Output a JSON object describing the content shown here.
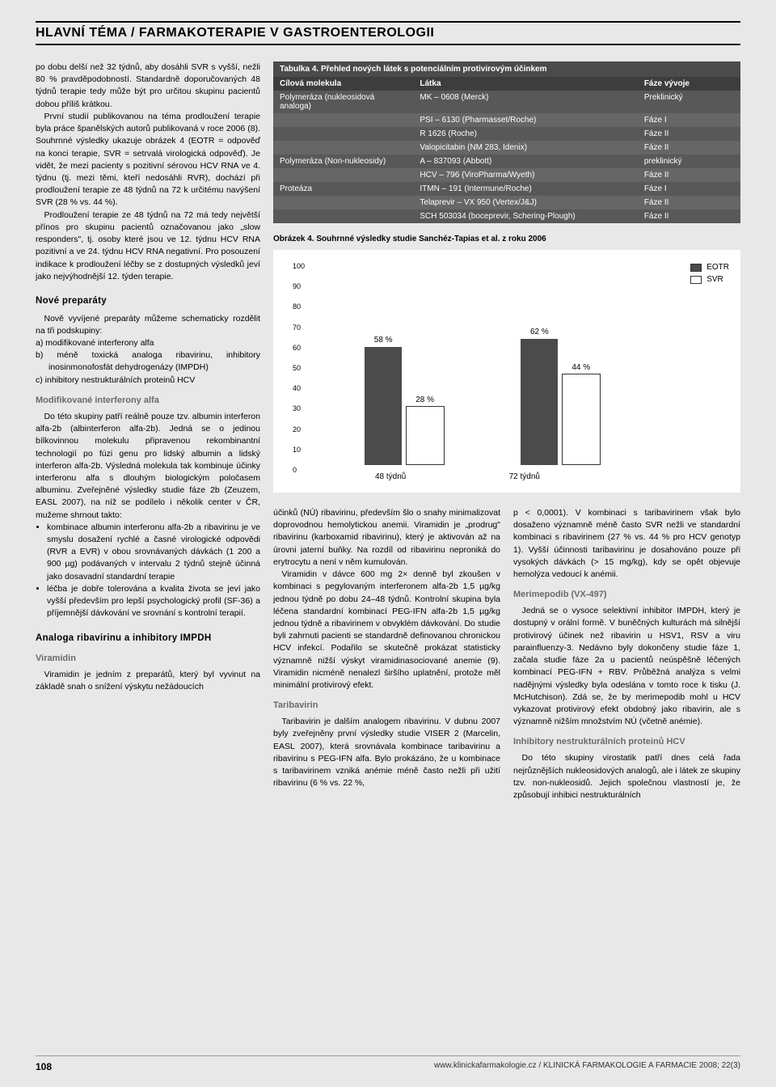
{
  "headline": "HLAVNÍ TÉMA / FARMAKOTERAPIE V GASTROENTEROLOGII",
  "left": {
    "p1": "po dobu delší než 32 týdnů, aby dosáhli SVR s vyšší, nežli 80 % pravděpodobností. Standardně doporučovaných 48 týdnů terapie tedy může být pro určitou skupinu pacientů dobou příliš krátkou.",
    "p2": "První studií publikovanou na téma prodloužení terapie byla práce španělských autorů publikovaná v roce 2006 (8). Souhrnné výsledky ukazuje obrázek 4 (EOTR = odpověď na konci terapie, SVR = setrvalá virologická odpověď). Je vidět, že mezi pacienty s pozitivní sérovou HCV RNA ve 4. týdnu (tj. mezi těmi, kteří nedosáhli RVR), dochází při prodloužení terapie ze 48 týdnů na 72 k určitému navýšení SVR (28 % vs. 44 %).",
    "p3": "Prodloužení terapie ze 48 týdnů na 72 má tedy největší přínos pro skupinu pacientů označovanou jako „slow responders\", tj. osoby které jsou ve 12. týdnu HCV RNA pozitivní a ve 24. týdnu HCV RNA negativní. Pro posouzení indikace k prodloužení léčby se z dostupných výsledků jeví jako nejvýhodnější 12. týden terapie.",
    "sub1": "Nové preparáty",
    "p4": "Nově vyvíjené preparáty můžeme schematicky rozdělit na tři podskupiny:",
    "li_a": "a)  modifikované interferony alfa",
    "li_b": "b)  méně toxická analoga ribavirinu, inhibitory inosinmonofosfát dehydrogenázy (IMPDH)",
    "li_c": "c)  inhibitory nestrukturálních proteinů HCV",
    "sub2": "Modifikované interferony alfa",
    "p5": "Do této skupiny patří reálně pouze tzv. albumin interferon alfa-2b (albinterferon alfa-2b). Jedná se o jedinou bílkovinnou molekulu připravenou rekombinantní technologií po fúzi genu pro lidský albumin a lidský interferon alfa-2b. Výsledná molekula tak kombinuje účinky interferonu alfa s dlouhým biologickým poločasem albuminu. Zveřejněné výsledky studie fáze 2b (Zeuzem, EASL 2007), na níž se podílelo i několik center v ČR, mužeme shrnout takto:",
    "b1": "kombinace albumin interferonu alfa-2b a ribavirinu je ve smyslu dosažení rychlé a časné virologické odpovědi (RVR a EVR) v obou srovnávaných dávkách (1 200 a 900 µg) podávaných v intervalu 2 týdnů stejně účinná jako dosavadní standardní terapie",
    "b2": "léčba je dobře tolerována a kvalita života se jeví jako vyšší především pro lepší psychologický profil (SF-36) a příjemnější dávkování ve srovnání s kontrolní terapií.",
    "sub3": "Analoga ribavirinu a inhibitory IMPDH",
    "sub4": "Viramidin",
    "p6": "Viramidin je jedním z preparátů, který byl vyvinut na základě snah o snížení výskytu nežádoucích"
  },
  "table": {
    "caption": "Tabulka 4. Přehled nových látek s potenciálním protivirovým účinkem",
    "h1": "Cílová molekula",
    "h2": "Látka",
    "h3": "Fáze vývoje",
    "rows": [
      {
        "c0": "Polymeráza (nukleosidová analoga)",
        "c1": "MK – 0608 (Merck)",
        "c2": "Preklinický"
      },
      {
        "c0": "",
        "c1": "PSI – 6130 (Pharmasset/Roche)",
        "c2": "Fáze I"
      },
      {
        "c0": "",
        "c1": "R 1626 (Roche)",
        "c2": "Fáze II"
      },
      {
        "c0": "",
        "c1": "Valopicitabin (NM 283, Idenix)",
        "c2": "Fáze II"
      },
      {
        "c0": "Polymeráza (Non-nukleosidy)",
        "c1": "A – 837093 (Abbott)",
        "c2": "preklinický"
      },
      {
        "c0": "",
        "c1": "HCV – 796 (ViroPharma/Wyeth)",
        "c2": "Fáze II"
      },
      {
        "c0": "Proteáza",
        "c1": "ITMN – 191 (Intermune/Roche)",
        "c2": "Fáze I"
      },
      {
        "c0": "",
        "c1": "Telaprevir – VX 950 (Vertex/J&J)",
        "c2": "Fáze II"
      },
      {
        "c0": "",
        "c1": "SCH 503034 (boceprevir, Schering-Plough)",
        "c2": "Fáze II"
      }
    ]
  },
  "chart": {
    "caption": "Obrázek 4. Souhrnné výsledky studie Sanchéz-Tapias et al. z roku 2006",
    "type": "bar",
    "ylim": [
      0,
      100
    ],
    "ytick_step": 10,
    "background_color": "#ffffff",
    "categories": [
      "48 týdnů",
      "72 týdnů"
    ],
    "series": [
      {
        "name": "EOTR",
        "color": "#4b4b4b",
        "values": [
          58,
          62
        ]
      },
      {
        "name": "SVR",
        "color": "#ffffff",
        "border": "#333333",
        "values": [
          28,
          44
        ]
      }
    ],
    "bar_width_pct": 11,
    "group_gap_pct": 46,
    "title_fontsize": 10,
    "label_fontsize": 10
  },
  "mid": {
    "p1": "účinků (NÚ) ribavirinu, především šlo o snahy minimalizovat doprovodnou hemolytickou anemii. Viramidin je „prodrug\" ribavirinu (karboxamid ribavirinu), který je aktivován až na úrovni jaterní buňky. Na rozdíl od ribavirinu neproniká do erytrocytu a není v něm kumulován.",
    "p2": "Viramidin v dávce 600 mg 2× denně byl zkoušen v kombinaci s pegylovaným interferonem alfa-2b 1,5 µg/kg jednou týdně po dobu 24–48 týdnů. Kontrolní skupina byla léčena standardní kombinací PEG-IFN alfa-2b 1,5 µg/kg jednou týdně a ribavirinem v obvyklém dávkování. Do studie byli zahrnuti pacienti se standardně definovanou chronickou HCV infekcí. Podařilo se skutečně prokázat statisticky významně nižší výskyt viramidinasociované anemie (9). Viramidin nicméně nenalezl širšího uplatnění, protože měl minimální protivirový efekt.",
    "sub1": "Taribavirin",
    "p3": "Taribavirin je dalším analogem ribavirinu. V dubnu 2007 byly zveřejněny první výsledky studie VISER 2 (Marcelin, EASL 2007), která srovnávala kombinace taribavirinu a ribavirinu s PEG-IFN alfa. Bylo prokázáno, že u kombinace s taribavirinem vzniká anémie méně často nežli při užití ribavirinu (6 % vs. 22 %,"
  },
  "right": {
    "p1": "p < 0,0001). V kombinaci s taribavirinem však bylo dosaženo významně méně často SVR nežli ve standardní kombinaci s ribavirinem (27 % vs. 44 % pro HCV genotyp 1). Vyšší účinnosti taribavirinu je dosahováno pouze při vysokých dávkách (> 15 mg/kg), kdy se opět objevuje hemolýza vedoucí k anémii.",
    "sub1": "Merimepodib (VX-497)",
    "p2": "Jedná se o vysoce selektivní inhibitor IMPDH, který je dostupný v orální formě. V buněčných kulturách má silnější protivirový účinek než ribavirin u HSV1, RSV a viru parainfluenzy-3. Nedávno byly dokončeny studie fáze 1, začala studie fáze 2a u pacientů neúspěšně léčených kombinací PEG-IFN + RBV. Průběžná analýza s velmi nadějnými výsledky byla odeslána v tomto roce k tisku (J. McHutchison). Zdá se, že by merimepodib mohl u HCV vykazovat protivirový efekt obdobný jako ribavirin, ale s významně nižším množstvím NÚ (včetně anémie).",
    "sub2": "Inhibitory nestrukturálních proteinů HCV",
    "p3": "Do této skupiny virostatik patří dnes celá řada nejrůznějších nukleosidových analogů, ale i látek ze skupiny tzv. non-nukleosidů. Jejich společnou vlastností je, že způsobují inhibici nestrukturálních"
  },
  "footer": {
    "page": "108",
    "src": "www.klinickafarmakologie.cz  /  KLINICKÁ FARMAKOLOGIE A FARMACIE  2008; 22(3)"
  }
}
